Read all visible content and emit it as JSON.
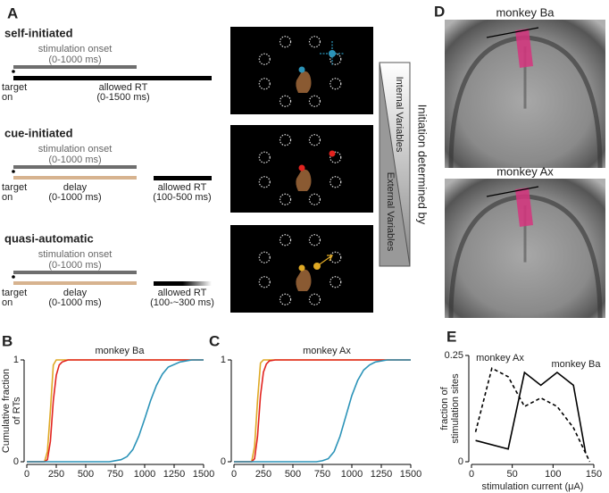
{
  "panel_a": {
    "letter": "A",
    "rows": [
      {
        "title": "self-initiated",
        "color": "#2b93b8",
        "stimulation": [
          "stimulation onset",
          "(0-1000 ms)"
        ],
        "target": [
          "target",
          "on"
        ],
        "rt": [
          "allowed RT",
          "(0-1500 ms)"
        ]
      },
      {
        "title": "cue-initiated",
        "color": "#e2231f",
        "stimulation": [
          "stimulation onset",
          "(0-1000 ms)"
        ],
        "target": [
          "target",
          "on"
        ],
        "delay": [
          "delay",
          "(0-1000 ms)"
        ],
        "rt": [
          "allowed RT",
          "(100-500 ms)"
        ]
      },
      {
        "title": "quasi-automatic",
        "color": "#dfa924",
        "stimulation": [
          "stimulation onset",
          "(0-1000 ms)"
        ],
        "target": [
          "target",
          "on"
        ],
        "delay": [
          "delay",
          "(0-1000 ms)"
        ],
        "rt": [
          "allowed RT",
          "(100-~300 ms)"
        ]
      }
    ],
    "internal": "Internal Variables",
    "external": "External Variables",
    "initiation": "Initiation determined by"
  },
  "panel_d": {
    "letter": "D",
    "images": [
      "monkey Ba",
      "monkey Ax"
    ]
  },
  "chart_data": [
    {
      "type": "line",
      "letter": "B",
      "title": "monkey Ba",
      "ylabel": [
        "Cumulative fraction",
        "of RTs"
      ],
      "x": [
        0,
        150,
        175,
        200,
        225,
        250,
        275,
        300,
        350,
        500,
        700,
        800,
        850,
        900,
        950,
        1000,
        1050,
        1100,
        1150,
        1200,
        1300,
        1400,
        1500
      ],
      "xlim": [
        0,
        1500
      ],
      "xticks": [
        0,
        250,
        500,
        750,
        1000,
        1250,
        1500
      ],
      "ylim": [
        0,
        1
      ],
      "yticks": [
        0,
        1
      ],
      "series": [
        {
          "color": "#dfa924",
          "values": [
            0,
            0,
            0.1,
            0.5,
            0.95,
            1,
            1,
            1,
            1,
            1,
            1,
            1,
            1,
            1,
            1,
            1,
            1,
            1,
            1,
            1,
            1,
            1,
            1
          ]
        },
        {
          "color": "#e2231f",
          "values": [
            0,
            0,
            0.02,
            0.2,
            0.6,
            0.85,
            0.95,
            0.98,
            1,
            1,
            1,
            1,
            1,
            1,
            1,
            1,
            1,
            1,
            1,
            1,
            1,
            1,
            1
          ]
        },
        {
          "color": "#2b93b8",
          "values": [
            0,
            0,
            0,
            0,
            0,
            0,
            0,
            0,
            0,
            0,
            0,
            0.02,
            0.05,
            0.12,
            0.25,
            0.42,
            0.6,
            0.75,
            0.86,
            0.93,
            0.98,
            1,
            1
          ]
        }
      ]
    },
    {
      "type": "line",
      "letter": "C",
      "title": "monkey Ax",
      "x": [
        0,
        150,
        175,
        200,
        225,
        250,
        275,
        300,
        350,
        500,
        700,
        750,
        800,
        850,
        900,
        950,
        1000,
        1050,
        1100,
        1150,
        1200,
        1300,
        1500
      ],
      "xlim": [
        0,
        1500
      ],
      "xticks": [
        0,
        250,
        500,
        750,
        1000,
        1250,
        1500
      ],
      "ylim": [
        0,
        1
      ],
      "yticks": [
        0,
        1
      ],
      "series": [
        {
          "color": "#dfa924",
          "values": [
            0,
            0,
            0.15,
            0.6,
            0.97,
            1,
            1,
            1,
            1,
            1,
            1,
            1,
            1,
            1,
            1,
            1,
            1,
            1,
            1,
            1,
            1,
            1,
            1
          ]
        },
        {
          "color": "#e2231f",
          "values": [
            0,
            0,
            0.03,
            0.25,
            0.65,
            0.88,
            0.96,
            0.99,
            1,
            1,
            1,
            1,
            1,
            1,
            1,
            1,
            1,
            1,
            1,
            1,
            1,
            1,
            1
          ]
        },
        {
          "color": "#2b93b8",
          "values": [
            0,
            0,
            0,
            0,
            0,
            0,
            0,
            0,
            0,
            0,
            0,
            0.01,
            0.03,
            0.1,
            0.25,
            0.45,
            0.65,
            0.8,
            0.9,
            0.95,
            0.98,
            1,
            1
          ]
        }
      ]
    },
    {
      "type": "line",
      "letter": "E",
      "ylabel": [
        "fraction of",
        "stimulation sites"
      ],
      "xlabel": "stimulation current (μA)",
      "xlim": [
        0,
        150
      ],
      "xticks": [
        0,
        50,
        100,
        150
      ],
      "ylim": [
        0,
        0.25
      ],
      "yticks": [
        0,
        0.25
      ],
      "series": [
        {
          "name": "monkey Ba",
          "color": "#000000",
          "dash": false,
          "x": [
            5,
            45,
            65,
            85,
            105,
            125,
            140
          ],
          "values": [
            0.05,
            0.03,
            0.21,
            0.18,
            0.21,
            0.18,
            0.02
          ]
        },
        {
          "name": "monkey Ax",
          "color": "#000000",
          "dash": true,
          "x": [
            5,
            25,
            45,
            65,
            85,
            105,
            125,
            145
          ],
          "values": [
            0.07,
            0.22,
            0.2,
            0.13,
            0.15,
            0.13,
            0.08,
            0
          ]
        }
      ]
    }
  ]
}
